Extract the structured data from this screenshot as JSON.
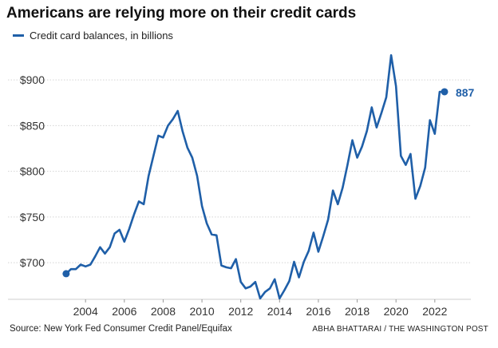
{
  "chart_data": {
    "type": "line",
    "title": "Americans are relying more on their credit cards",
    "legend": "Credit card balances, in billions",
    "source": "Source: New York Fed Consumer Credit Panel/Equifax",
    "credit": "ABHA BHATTARAI / THE WASHINGTON POST",
    "xlabel": "",
    "ylabel": "",
    "xlim": [
      2002.8,
      2023.2
    ],
    "ylim": [
      660,
      935
    ],
    "y_ticks": [
      700,
      750,
      800,
      850,
      900
    ],
    "y_tick_labels": [
      "$700",
      "$750",
      "$800",
      "$850",
      "$900"
    ],
    "x_ticks": [
      2004,
      2006,
      2008,
      2010,
      2012,
      2014,
      2016,
      2018,
      2020,
      2022
    ],
    "x_tick_labels": [
      "2004",
      "2006",
      "2008",
      "2010",
      "2012",
      "2014",
      "2016",
      "2018",
      "2020",
      "2022"
    ],
    "grid": "horizontal",
    "series": [
      {
        "name": "Credit card balances, in billions",
        "color": "#1f5fa8",
        "x": [
          2003.0,
          2003.25,
          2003.5,
          2003.75,
          2004.0,
          2004.25,
          2004.5,
          2004.75,
          2005.0,
          2005.25,
          2005.5,
          2005.75,
          2006.0,
          2006.25,
          2006.5,
          2006.75,
          2007.0,
          2007.25,
          2007.5,
          2007.75,
          2008.0,
          2008.25,
          2008.5,
          2008.75,
          2009.0,
          2009.25,
          2009.5,
          2009.75,
          2010.0,
          2010.25,
          2010.5,
          2010.75,
          2011.0,
          2011.25,
          2011.5,
          2011.75,
          2012.0,
          2012.25,
          2012.5,
          2012.75,
          2013.0,
          2013.25,
          2013.5,
          2013.75,
          2014.0,
          2014.25,
          2014.5,
          2014.75,
          2015.0,
          2015.25,
          2015.5,
          2015.75,
          2016.0,
          2016.25,
          2016.5,
          2016.75,
          2017.0,
          2017.25,
          2017.5,
          2017.75,
          2018.0,
          2018.25,
          2018.5,
          2018.75,
          2019.0,
          2019.25,
          2019.5,
          2019.75,
          2020.0,
          2020.25,
          2020.5,
          2020.75,
          2021.0,
          2021.25,
          2021.5,
          2021.75,
          2022.0,
          2022.25,
          2022.5
        ],
        "values": [
          688,
          693,
          693,
          698,
          696,
          698,
          707,
          717,
          710,
          717,
          732,
          736,
          723,
          737,
          753,
          767,
          764,
          795,
          817,
          839,
          837,
          850,
          857,
          866,
          844,
          826,
          815,
          795,
          762,
          743,
          731,
          730,
          697,
          695,
          694,
          704,
          679,
          672,
          674,
          679,
          661,
          668,
          672,
          682,
          661,
          670,
          680,
          701,
          684,
          701,
          713,
          733,
          712,
          729,
          747,
          779,
          764,
          782,
          807,
          834,
          815,
          827,
          844,
          870,
          848,
          864,
          881,
          927,
          893,
          817,
          807,
          819,
          770,
          784,
          804,
          856,
          841,
          887,
          887
        ]
      }
    ],
    "end_label": "887"
  }
}
